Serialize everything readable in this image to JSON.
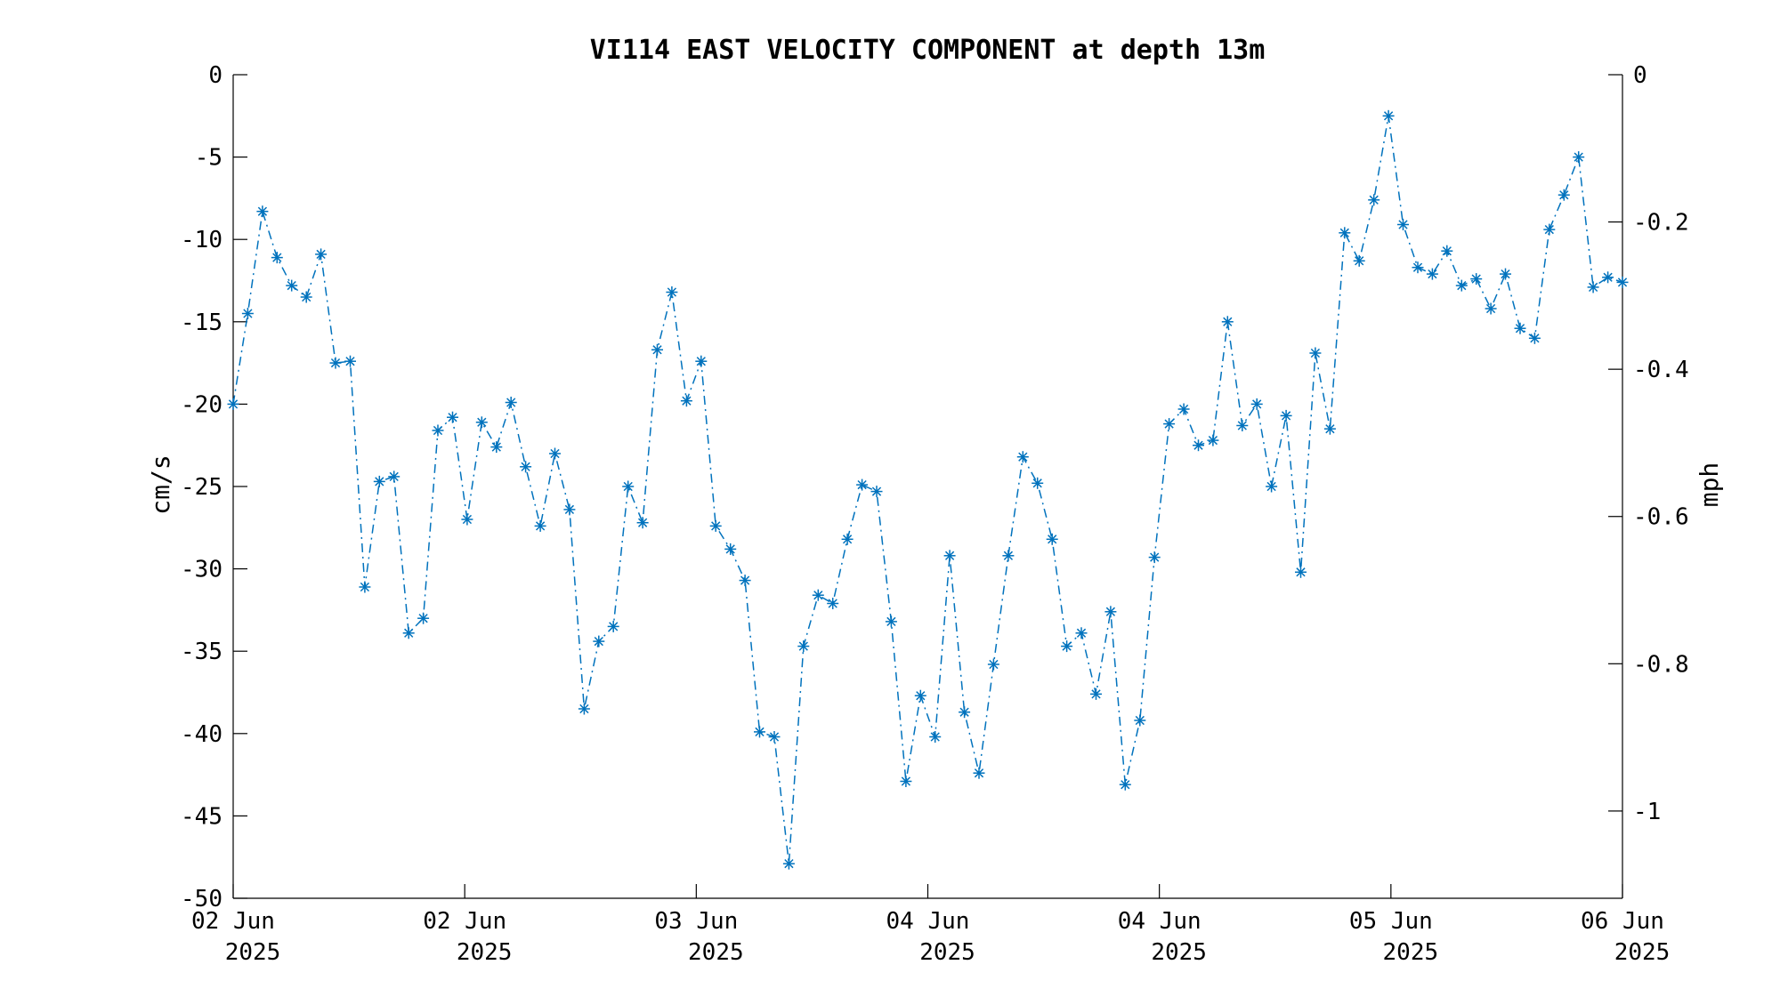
{
  "chart_data": {
    "type": "line",
    "title": "VI114 EAST VELOCITY COMPONENT at depth 13m",
    "ylabel": "cm/s",
    "y2label": "mph",
    "ylim": [
      -50,
      0
    ],
    "y2lim": [
      -1.1185,
      0
    ],
    "yticks": [
      "0",
      "-5",
      "-10",
      "-15",
      "-20",
      "-25",
      "-30",
      "-35",
      "-40",
      "-45",
      "-50"
    ],
    "y2ticks": [
      {
        "value": 0,
        "label": "0"
      },
      {
        "value": -0.2,
        "label": "-0.2"
      },
      {
        "value": -0.4,
        "label": "-0.4"
      },
      {
        "value": -0.6,
        "label": "-0.6"
      },
      {
        "value": -0.8,
        "label": "-0.8"
      },
      {
        "value": -1.0,
        "label": "-1"
      }
    ],
    "xticks": [
      {
        "day": "02 Jun",
        "year": "2025"
      },
      {
        "day": "02 Jun",
        "year": "2025"
      },
      {
        "day": "03 Jun",
        "year": "2025"
      },
      {
        "day": "04 Jun",
        "year": "2025"
      },
      {
        "day": "04 Jun",
        "year": "2025"
      },
      {
        "day": "05 Jun",
        "year": "2025"
      },
      {
        "day": "06 Jun",
        "year": "2025"
      }
    ],
    "grid": false,
    "line_style": "dash-dot",
    "marker": "asterisk",
    "color": "#0072BD",
    "series": [
      {
        "values": [
          -20.0,
          -14.5,
          -8.3,
          -11.1,
          -12.8,
          -13.5,
          -10.9,
          -17.5,
          -17.4,
          -31.1,
          -24.7,
          -24.4,
          -33.9,
          -33.0,
          -21.6,
          -20.8,
          -27.0,
          -21.1,
          -22.6,
          -19.9,
          -23.8,
          -27.4,
          -23.0,
          -26.4,
          -38.5,
          -34.4,
          -33.5,
          -25.0,
          -27.2,
          -16.7,
          -13.2,
          -19.8,
          -17.4,
          -27.4,
          -28.8,
          -30.7,
          -39.9,
          -40.2,
          -47.9,
          -34.7,
          -31.6,
          -32.1,
          -28.2,
          -24.9,
          -25.3,
          -33.2,
          -42.9,
          -37.7,
          -40.2,
          -29.2,
          -38.7,
          -42.4,
          -35.8,
          -29.2,
          -23.2,
          -24.8,
          -28.2,
          -34.7,
          -33.9,
          -37.6,
          -32.6,
          -43.1,
          -39.2,
          -29.3,
          -21.2,
          -20.3,
          -22.5,
          -22.2,
          -15.0,
          -21.3,
          -20.0,
          -25.0,
          -20.7,
          -30.2,
          -16.9,
          -21.5,
          -9.6,
          -11.3,
          -7.6,
          -2.5,
          -9.1,
          -11.7,
          -12.1,
          -10.7,
          -12.8,
          -12.4,
          -14.2,
          -12.1,
          -15.4,
          -16.0,
          -9.4,
          -7.3,
          -5.0,
          -12.9,
          -12.3,
          -12.6
        ]
      }
    ]
  }
}
